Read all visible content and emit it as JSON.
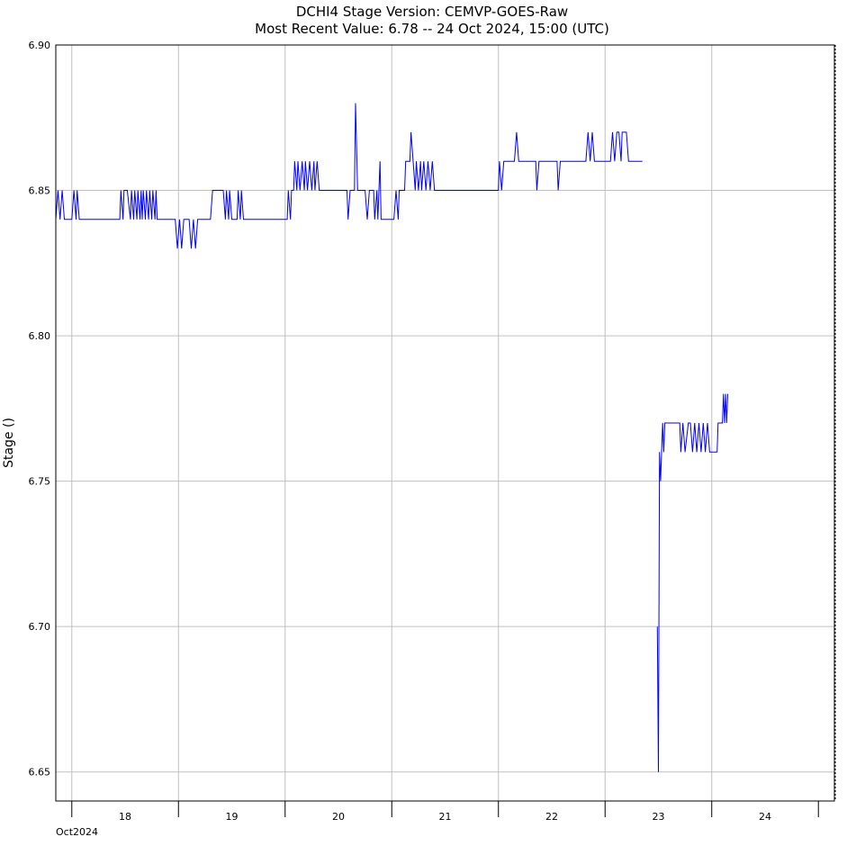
{
  "chart_data": {
    "type": "line",
    "title": "DCHI4  Stage  Version: CEMVP-GOES-Raw",
    "subtitle": "Most Recent Value: 6.78  --  24 Oct 2024, 15:00 (UTC)",
    "ylabel": "Stage ()",
    "xlabel": "",
    "month_label": "Oct2024",
    "ylim": [
      6.64,
      6.9
    ],
    "y_ticks": [
      "6.65",
      "6.70",
      "6.75",
      "6.80",
      "6.85",
      "6.90"
    ],
    "x_units": "day of October 2024",
    "xlim": [
      17.35,
      24.65
    ],
    "x_ticks": [
      18,
      19,
      20,
      21,
      22,
      23,
      24
    ],
    "x_tick_labels": [
      "18",
      "19",
      "20",
      "21",
      "22",
      "23",
      "24"
    ],
    "grid": true,
    "colors": {
      "series": "#0000ff",
      "grid": "#c0c0c0"
    },
    "series": [
      {
        "name": "",
        "points": [
          [
            17.35,
            6.84
          ],
          [
            17.37,
            6.85
          ],
          [
            17.39,
            6.84
          ],
          [
            17.41,
            6.85
          ],
          [
            17.43,
            6.84
          ],
          [
            17.45,
            6.84
          ],
          [
            17.5,
            6.84
          ],
          [
            17.52,
            6.85
          ],
          [
            17.54,
            6.84
          ],
          [
            17.55,
            6.85
          ],
          [
            17.57,
            6.84
          ],
          [
            17.6,
            6.84
          ],
          [
            17.8,
            6.84
          ],
          [
            17.95,
            6.84
          ],
          [
            17.96,
            6.85
          ],
          [
            17.98,
            6.84
          ],
          [
            17.99,
            6.85
          ],
          [
            18.02,
            6.85
          ],
          [
            18.05,
            6.84
          ],
          [
            18.06,
            6.85
          ],
          [
            18.08,
            6.84
          ],
          [
            18.09,
            6.85
          ],
          [
            18.11,
            6.84
          ],
          [
            18.12,
            6.85
          ],
          [
            18.14,
            6.84
          ],
          [
            18.15,
            6.85
          ],
          [
            18.16,
            6.84
          ],
          [
            18.17,
            6.85
          ],
          [
            18.19,
            6.84
          ],
          [
            18.2,
            6.85
          ],
          [
            18.22,
            6.84
          ],
          [
            18.23,
            6.85
          ],
          [
            18.25,
            6.84
          ],
          [
            18.26,
            6.85
          ],
          [
            18.28,
            6.84
          ],
          [
            18.29,
            6.85
          ],
          [
            18.3,
            6.84
          ],
          [
            18.45,
            6.84
          ],
          [
            18.47,
            6.84
          ],
          [
            18.49,
            6.83
          ],
          [
            18.51,
            6.84
          ],
          [
            18.53,
            6.83
          ],
          [
            18.55,
            6.84
          ],
          [
            18.6,
            6.84
          ],
          [
            18.62,
            6.83
          ],
          [
            18.64,
            6.84
          ],
          [
            18.66,
            6.83
          ],
          [
            18.68,
            6.84
          ],
          [
            18.8,
            6.84
          ],
          [
            18.82,
            6.85
          ],
          [
            18.92,
            6.85
          ],
          [
            18.94,
            6.84
          ],
          [
            18.95,
            6.85
          ],
          [
            18.97,
            6.84
          ],
          [
            18.98,
            6.85
          ],
          [
            19.0,
            6.84
          ],
          [
            19.05,
            6.84
          ],
          [
            19.06,
            6.85
          ],
          [
            19.08,
            6.84
          ],
          [
            19.09,
            6.85
          ],
          [
            19.11,
            6.84
          ],
          [
            19.3,
            6.84
          ],
          [
            19.52,
            6.84
          ],
          [
            19.53,
            6.85
          ],
          [
            19.55,
            6.84
          ],
          [
            19.56,
            6.85
          ],
          [
            19.58,
            6.85
          ],
          [
            19.59,
            6.86
          ],
          [
            19.61,
            6.85
          ],
          [
            19.62,
            6.86
          ],
          [
            19.64,
            6.85
          ],
          [
            19.66,
            6.86
          ],
          [
            19.68,
            6.85
          ],
          [
            19.69,
            6.86
          ],
          [
            19.71,
            6.85
          ],
          [
            19.73,
            6.86
          ],
          [
            19.75,
            6.85
          ],
          [
            19.77,
            6.86
          ],
          [
            19.78,
            6.85
          ],
          [
            19.8,
            6.86
          ],
          [
            19.82,
            6.85
          ],
          [
            20.0,
            6.85
          ],
          [
            20.08,
            6.85
          ],
          [
            20.09,
            6.84
          ],
          [
            20.11,
            6.85
          ],
          [
            20.15,
            6.85
          ],
          [
            20.16,
            6.88
          ],
          [
            20.18,
            6.85
          ],
          [
            20.25,
            6.85
          ],
          [
            20.27,
            6.84
          ],
          [
            20.29,
            6.85
          ],
          [
            20.33,
            6.85
          ],
          [
            20.34,
            6.84
          ],
          [
            20.36,
            6.85
          ],
          [
            20.37,
            6.84
          ],
          [
            20.39,
            6.86
          ],
          [
            20.4,
            6.84
          ],
          [
            20.52,
            6.84
          ],
          [
            20.54,
            6.85
          ],
          [
            20.56,
            6.84
          ],
          [
            20.57,
            6.85
          ],
          [
            20.62,
            6.85
          ],
          [
            20.63,
            6.86
          ],
          [
            20.65,
            6.86
          ],
          [
            20.67,
            6.86
          ],
          [
            20.68,
            6.87
          ],
          [
            20.7,
            6.86
          ],
          [
            20.72,
            6.85
          ],
          [
            20.73,
            6.86
          ],
          [
            20.75,
            6.85
          ],
          [
            20.77,
            6.86
          ],
          [
            20.78,
            6.85
          ],
          [
            20.8,
            6.86
          ],
          [
            20.82,
            6.85
          ],
          [
            20.84,
            6.86
          ],
          [
            20.86,
            6.85
          ],
          [
            20.88,
            6.86
          ],
          [
            20.9,
            6.85
          ],
          [
            21.5,
            6.85
          ],
          [
            21.51,
            6.86
          ],
          [
            21.53,
            6.85
          ],
          [
            21.55,
            6.86
          ],
          [
            21.57,
            6.86
          ],
          [
            21.6,
            6.86
          ],
          [
            21.65,
            6.86
          ],
          [
            21.67,
            6.87
          ],
          [
            21.69,
            6.86
          ],
          [
            21.85,
            6.86
          ],
          [
            21.86,
            6.85
          ],
          [
            21.88,
            6.86
          ],
          [
            22.05,
            6.86
          ],
          [
            22.06,
            6.85
          ],
          [
            22.08,
            6.86
          ],
          [
            22.3,
            6.86
          ],
          [
            22.32,
            6.86
          ],
          [
            22.34,
            6.87
          ],
          [
            22.36,
            6.86
          ],
          [
            22.38,
            6.87
          ],
          [
            22.4,
            6.86
          ],
          [
            22.55,
            6.86
          ],
          [
            22.57,
            6.87
          ],
          [
            22.59,
            6.86
          ],
          [
            22.61,
            6.87
          ],
          [
            22.63,
            6.87
          ],
          [
            22.65,
            6.86
          ],
          [
            22.66,
            6.87
          ],
          [
            22.7,
            6.87
          ],
          [
            22.72,
            6.86
          ],
          [
            22.85,
            6.86
          ]
        ]
      },
      {
        "name": "",
        "points": [
          [
            22.99,
            6.7
          ],
          [
            23.0,
            6.65
          ],
          [
            23.01,
            6.76
          ],
          [
            23.02,
            6.75
          ],
          [
            23.03,
            6.76
          ],
          [
            23.04,
            6.77
          ],
          [
            23.05,
            6.76
          ],
          [
            23.06,
            6.77
          ],
          [
            23.2,
            6.77
          ],
          [
            23.21,
            6.76
          ],
          [
            23.23,
            6.77
          ],
          [
            23.25,
            6.76
          ],
          [
            23.28,
            6.77
          ],
          [
            23.3,
            6.77
          ],
          [
            23.32,
            6.76
          ],
          [
            23.34,
            6.77
          ],
          [
            23.36,
            6.76
          ],
          [
            23.38,
            6.77
          ],
          [
            23.4,
            6.76
          ],
          [
            23.42,
            6.77
          ],
          [
            23.44,
            6.76
          ],
          [
            23.46,
            6.77
          ],
          [
            23.48,
            6.76
          ],
          [
            23.5,
            6.76
          ],
          [
            23.55,
            6.76
          ],
          [
            23.56,
            6.77
          ],
          [
            23.6,
            6.77
          ],
          [
            23.61,
            6.78
          ],
          [
            23.62,
            6.77
          ],
          [
            23.63,
            6.78
          ],
          [
            23.64,
            6.77
          ],
          [
            23.65,
            6.78
          ]
        ]
      }
    ]
  }
}
